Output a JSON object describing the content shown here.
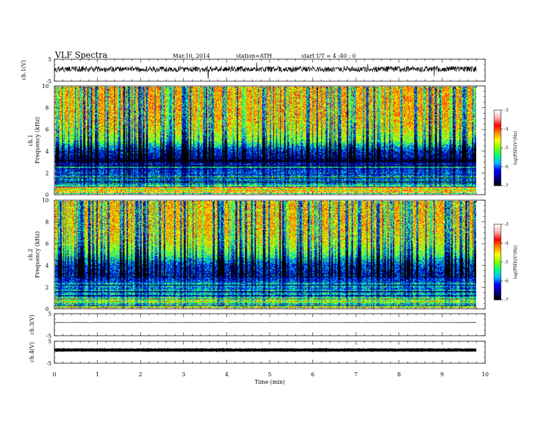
{
  "header": {
    "title": "VLF  Spectra",
    "date": "Mar.10, 2014",
    "station": "station=ATH",
    "start_ut": "start  UT  =   4  :40 : 0"
  },
  "chart_data": [
    {
      "type": "line",
      "panel": "ch1-waveform",
      "ylabel": "ch.1(V)",
      "ylim": [
        -5,
        5
      ],
      "yticks": [
        "5",
        "-5"
      ],
      "x_range_min": [
        0,
        9.8
      ],
      "color": "#000000",
      "signal": {
        "baseline_v": 0.5,
        "noise_amplitude_v": 1.3,
        "spike_amplitude_v": 3.5
      }
    },
    {
      "type": "heatmap",
      "panel": "ch1-spectrogram",
      "ylabel": [
        "ch.1",
        "Frequency  (kHz)"
      ],
      "ylim": [
        0,
        10
      ],
      "yticks": [
        "0",
        "2",
        "4",
        "6",
        "8",
        "10"
      ],
      "x_range_min": [
        0,
        9.8
      ],
      "value_label": "log(PSD)(V²/Hz)",
      "value_range": [
        -7,
        -3
      ],
      "colorbar_ticks": [
        "-3",
        "-4",
        "-5",
        "-6",
        "-7"
      ],
      "colormap": [
        "#000000",
        "#00008b",
        "#0000ff",
        "#00bfff",
        "#00ff7f",
        "#7fff00",
        "#ffff00",
        "#ff8c00",
        "#ff0000",
        "#ffb0b0",
        "#ffffff"
      ],
      "frequency_profile": {
        "freq_khz": [
          0,
          0.5,
          1,
          2,
          3,
          4,
          5,
          6,
          7,
          8,
          10
        ],
        "mean_log_psd": [
          -5.2,
          -4.8,
          -5.6,
          -6.0,
          -6.6,
          -6.2,
          -5.0,
          -4.6,
          -4.4,
          -4.3,
          -4.3
        ]
      },
      "dark_vertical_streaks": true
    },
    {
      "type": "heatmap",
      "panel": "ch2-spectrogram",
      "ylabel": [
        "ch.2",
        "Frequency  (kHz)"
      ],
      "ylim": [
        0,
        10
      ],
      "yticks": [
        "0",
        "2",
        "4",
        "6",
        "8",
        "10"
      ],
      "x_range_min": [
        0,
        9.8
      ],
      "value_label": "log(PSD)(V²/Hz)",
      "value_range": [
        -7,
        -3
      ],
      "colorbar_ticks": [
        "-3",
        "-4",
        "-5",
        "-6",
        "-7"
      ],
      "colormap": [
        "#000000",
        "#00008b",
        "#0000ff",
        "#00bfff",
        "#00ff7f",
        "#7fff00",
        "#ffff00",
        "#ff8c00",
        "#ff0000",
        "#ffb0b0",
        "#ffffff"
      ],
      "frequency_profile": {
        "freq_khz": [
          0,
          0.5,
          1,
          2,
          3,
          4,
          5,
          6,
          7,
          8,
          10
        ],
        "mean_log_psd": [
          -5.2,
          -4.9,
          -5.4,
          -5.8,
          -6.3,
          -6.1,
          -5.2,
          -4.7,
          -4.5,
          -4.4,
          -4.4
        ]
      },
      "dark_vertical_streaks": true
    },
    {
      "type": "line",
      "panel": "ch3-waveform",
      "ylabel": "ch.3(V)",
      "ylim": [
        -5,
        5
      ],
      "yticks": [
        "5",
        "-5"
      ],
      "x_range_min": [
        0,
        9.8
      ],
      "color": "#000000",
      "signal": {
        "baseline_v": 1.0,
        "noise_amplitude_v": 0.1,
        "spike_amplitude_v": 0
      }
    },
    {
      "type": "line",
      "panel": "ch4-waveform",
      "ylabel": "ch.4(V)",
      "ylim": [
        -5,
        5
      ],
      "yticks": [
        "5",
        "-5"
      ],
      "x_range_min": [
        0,
        9.8
      ],
      "color": "#000000",
      "signal": {
        "baseline_v": 1.0,
        "noise_amplitude_v": 0.1,
        "spike_amplitude_v": 0,
        "thick": true
      }
    }
  ],
  "x_axis": {
    "label": "Time  (min)",
    "range": [
      0,
      10
    ],
    "ticks": [
      "0",
      "1",
      "2",
      "3",
      "4",
      "5",
      "6",
      "7",
      "8",
      "9",
      "10"
    ]
  }
}
